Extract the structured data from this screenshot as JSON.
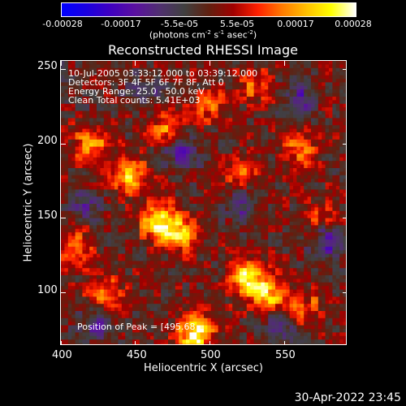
{
  "colorbar": {
    "ticks": [
      "-0.00028",
      "-0.00017",
      "-5.5e-05",
      "5.5e-05",
      "0.00017",
      "0.00028"
    ],
    "unit_prefix": "(photons cm",
    "unit_exp1": "-2",
    "unit_mid1": " s",
    "unit_exp2": "-1",
    "unit_mid2": " asec",
    "unit_exp3": "-2",
    "unit_suffix": ")",
    "colors": [
      "#0000ff",
      "#1a00e0",
      "#4000c0",
      "#5a10a0",
      "#503070",
      "#404040",
      "#602010",
      "#a00000",
      "#ff2000",
      "#ff7a00",
      "#ffc000",
      "#ffff00",
      "#ffffff"
    ]
  },
  "chart_data": {
    "type": "heatmap",
    "title": "Reconstructed RHESSI Image",
    "xlabel": "Heliocentric X (arcsec)",
    "ylabel": "Heliocentric Y (arcsec)",
    "xlim": [
      400,
      592
    ],
    "ylim": [
      64,
      256
    ],
    "x_ticks": [
      "400",
      "450",
      "500",
      "550"
    ],
    "y_ticks": [
      "250",
      "200",
      "150",
      "100"
    ],
    "value_range": [
      -0.00028,
      0.00028
    ],
    "peak": {
      "x": 495.68,
      "y": 70
    },
    "hotspots": [
      {
        "x": 445,
        "y": 180,
        "amp": 0.8
      },
      {
        "x": 420,
        "y": 200,
        "amp": 0.6
      },
      {
        "x": 465,
        "y": 148,
        "amp": 0.9
      },
      {
        "x": 480,
        "y": 140,
        "amp": 0.7
      },
      {
        "x": 525,
        "y": 110,
        "amp": 0.9
      },
      {
        "x": 540,
        "y": 98,
        "amp": 0.7
      },
      {
        "x": 490,
        "y": 72,
        "amp": 1.0
      },
      {
        "x": 470,
        "y": 210,
        "amp": 0.5
      },
      {
        "x": 560,
        "y": 195,
        "amp": 0.5
      },
      {
        "x": 520,
        "y": 180,
        "amp": 0.5
      },
      {
        "x": 530,
        "y": 240,
        "amp": 0.4
      },
      {
        "x": 575,
        "y": 150,
        "amp": 0.4
      },
      {
        "x": 410,
        "y": 130,
        "amp": 0.5
      },
      {
        "x": 430,
        "y": 100,
        "amp": 0.5
      },
      {
        "x": 565,
        "y": 90,
        "amp": 0.4
      },
      {
        "x": 500,
        "y": 225,
        "amp": 0.4
      }
    ],
    "coldspots": [
      {
        "x": 480,
        "y": 195,
        "amp": 0.6
      },
      {
        "x": 580,
        "y": 135,
        "amp": 0.7
      },
      {
        "x": 560,
        "y": 230,
        "amp": 0.5
      },
      {
        "x": 520,
        "y": 160,
        "amp": 0.5
      },
      {
        "x": 425,
        "y": 78,
        "amp": 0.5
      },
      {
        "x": 455,
        "y": 235,
        "amp": 0.4
      },
      {
        "x": 415,
        "y": 160,
        "amp": 0.4
      },
      {
        "x": 545,
        "y": 75,
        "amp": 0.4
      }
    ]
  },
  "info": {
    "time_range": "10-Jul-2005 03:33:12.000 to 03:39:12.000",
    "detectors": "Detectors: 3F 4F 5F 6F 7F 8F, Att 0",
    "energy_range": "Energy Range: 25.0 - 50.0 keV",
    "clean_counts": "Clean      Total counts: 5.41E+03",
    "peak_position": "Position of Peak = [495.68"
  },
  "timestamp": "30-Apr-2022 23:45"
}
